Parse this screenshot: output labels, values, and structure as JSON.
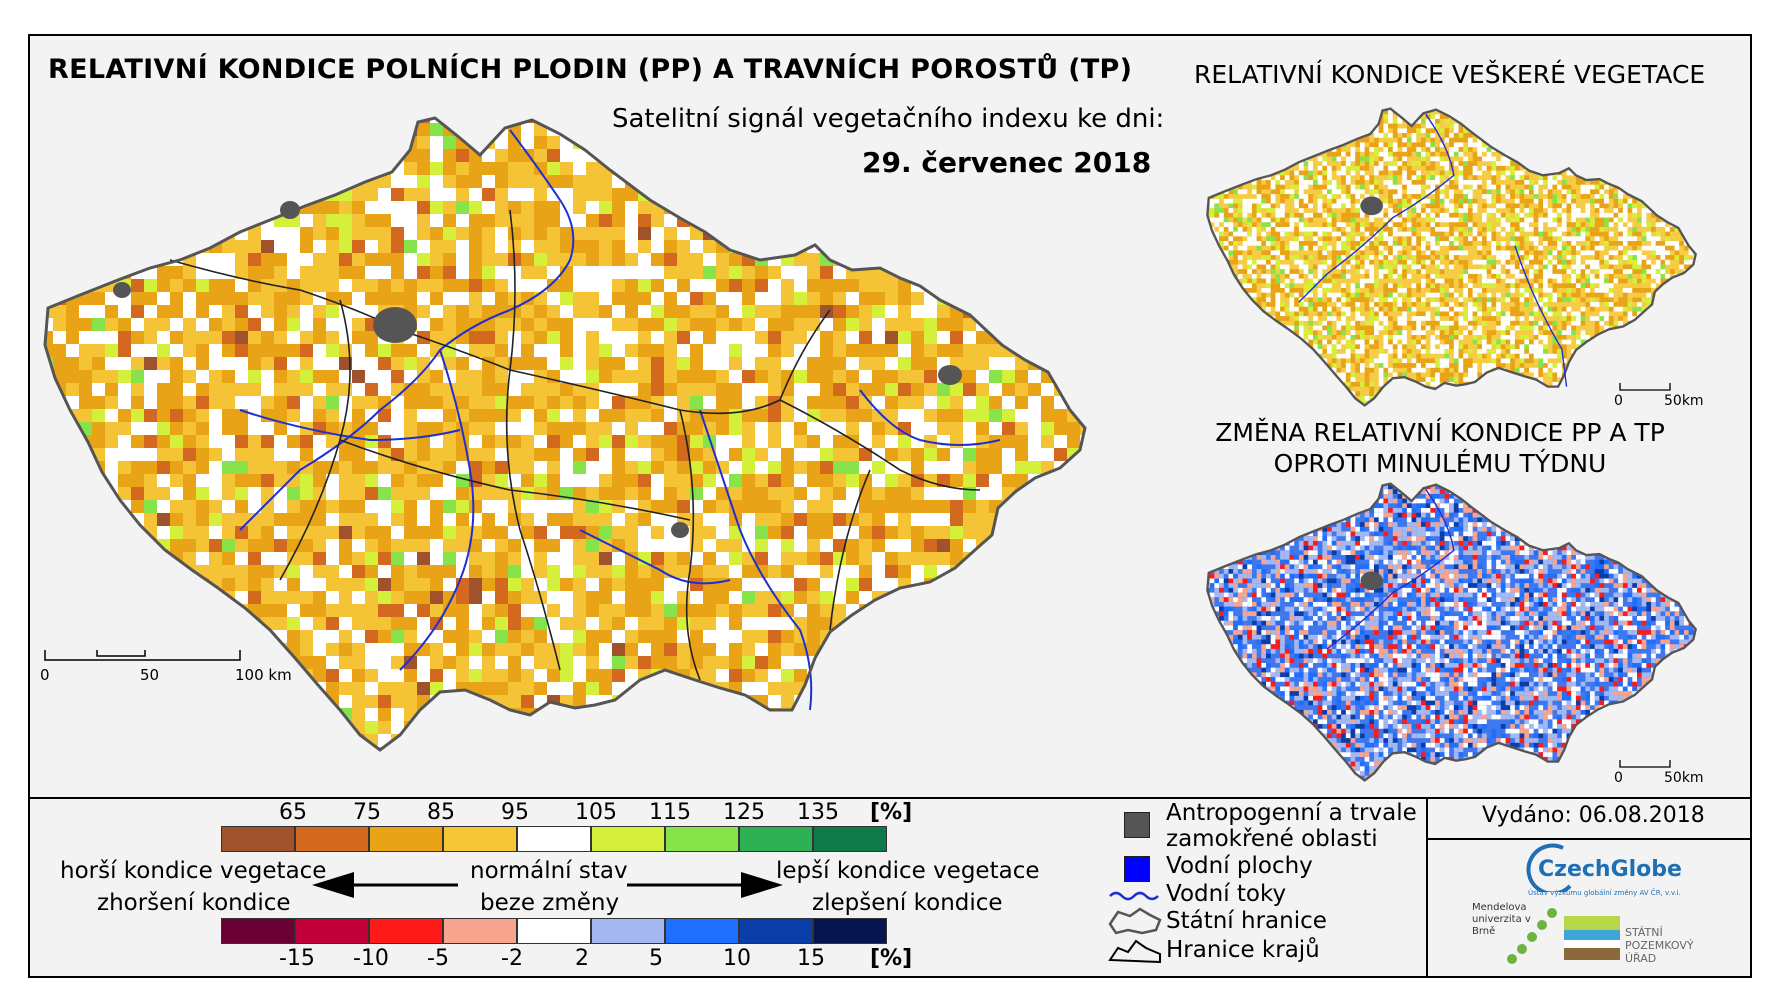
{
  "main_title": "RELATIVNÍ KONDICE POLNÍCH PLODIN (PP) A TRAVNÍCH POROSTŮ (TP)",
  "subtitle": "Satelitní signál vegetačního indexu ke dni:",
  "date": "29. červenec 2018",
  "right_map1_title": "RELATIVNÍ KONDICE VEŠKERÉ VEGETACE",
  "right_map2_title_line1": "ZMĚNA RELATIVNÍ KONDICE PP A TP",
  "right_map2_title_line2": "OPROTI MINULÉMU TÝDNU",
  "main_scalebar": {
    "labels": [
      "0",
      "50",
      "100 km"
    ]
  },
  "small_scalebar": {
    "labels": [
      "0",
      "50km"
    ]
  },
  "condition_scale": {
    "ticks": [
      "65",
      "75",
      "85",
      "95",
      "105",
      "115",
      "125",
      "135"
    ],
    "unit": "[%]",
    "colors": [
      "#a0522d",
      "#d2691e",
      "#e8a317",
      "#f7c637",
      "#ffffff",
      "#d4f03a",
      "#86e34a",
      "#2fb054",
      "#0e7a4a"
    ]
  },
  "change_scale": {
    "ticks": [
      "-15",
      "-10",
      "-5",
      "-2",
      "2",
      "5",
      "10",
      "15"
    ],
    "unit": "[%]",
    "colors": [
      "#6b0035",
      "#c2003b",
      "#ff1a1a",
      "#f8a58f",
      "#ffffff",
      "#a6b8f0",
      "#1f6fff",
      "#0b3da8",
      "#06154f"
    ]
  },
  "arrows": {
    "left_line1": "horší kondice vegetace",
    "left_line2": "zhoršení kondice",
    "center_line1": "normální stav",
    "center_line2": "beze změny",
    "right_line1": "lepší kondice vegetace",
    "right_line2": "zlepšení kondice"
  },
  "symbol_legend": {
    "anthropogenic_line1": "Antropogenní a trvale",
    "anthropogenic_line2": "zamokřené oblasti",
    "water_bodies": "Vodní plochy",
    "streams": "Vodní toky",
    "state_border": "Státní hranice",
    "region_border": "Hranice krajů"
  },
  "issued": "Vydáno: 06.08.2018",
  "logos": {
    "czechglobe": "CzechGlobe",
    "czechglobe_sub": "Ústav výzkumu globální změny AV ČR, v.v.i.",
    "mendel": "Mendelova univerzita v Brně",
    "spu": "STÁTNÍ POZEMKOVÝ ÚŘAD"
  }
}
